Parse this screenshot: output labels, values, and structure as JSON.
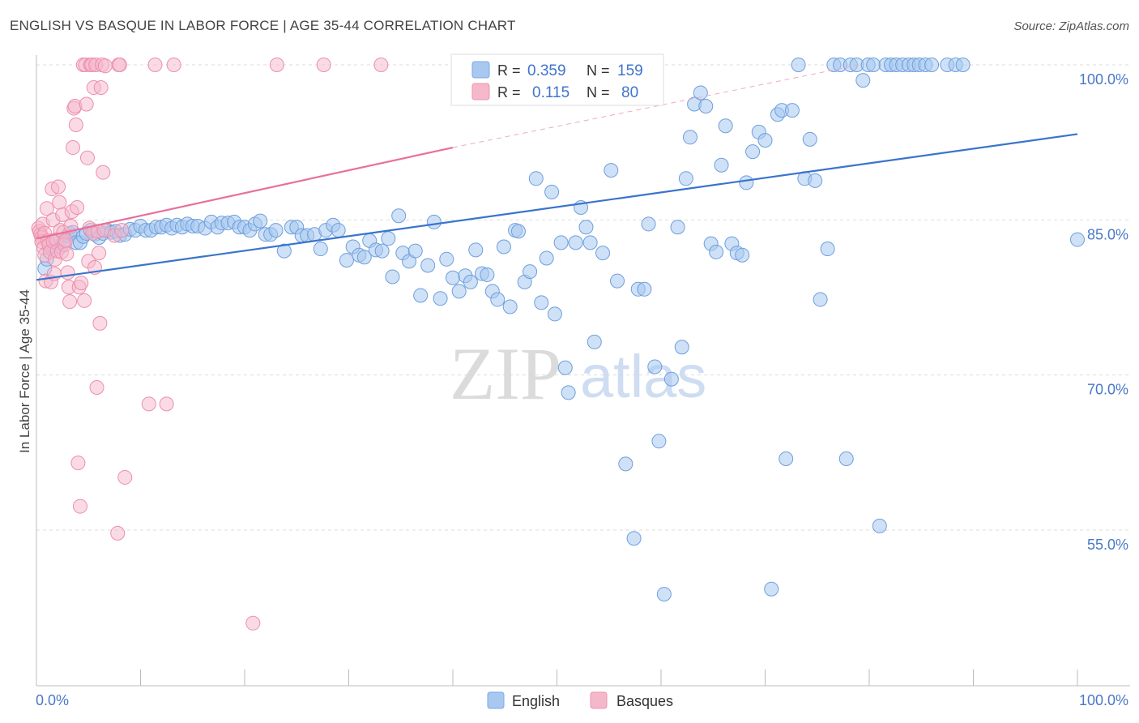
{
  "header": {
    "title": "ENGLISH VS BASQUE IN LABOR FORCE | AGE 35-44 CORRELATION CHART",
    "source": "Source: ZipAtlas.com"
  },
  "watermark": {
    "zip": "ZIP",
    "atlas": "atlas"
  },
  "legend_box": {
    "rows": [
      {
        "r_label": "R =",
        "r_value": "0.359",
        "n_label": "N =",
        "n_value": "159",
        "color": "#a8c8f0"
      },
      {
        "r_label": "R =",
        "r_value": "0.115",
        "n_label": "N =",
        "n_value": "80",
        "color": "#f5b8cb"
      }
    ]
  },
  "bottom_legend": [
    {
      "label": "English",
      "color": "#a8c8f0"
    },
    {
      "label": "Basques",
      "color": "#f5b8cb"
    }
  ],
  "chart_data": {
    "type": "scatter",
    "title": "ENGLISH VS BASQUE IN LABOR FORCE | AGE 35-44 CORRELATION CHART",
    "xlabel": "",
    "ylabel": "In Labor Force | Age 35-44",
    "xlim": [
      0,
      100
    ],
    "ylim": [
      40,
      102
    ],
    "x_tick_labels": [
      {
        "value": 0,
        "label": "0.0%"
      },
      {
        "value": 100,
        "label": "100.0%"
      }
    ],
    "y_tick_labels": [
      {
        "value": 100,
        "label": "100.0%"
      },
      {
        "value": 85,
        "label": "85.0%"
      },
      {
        "value": 70,
        "label": "70.0%"
      },
      {
        "value": 55,
        "label": "55.0%"
      }
    ],
    "grid": "horizontal dashed",
    "legend_position": "bottom-center",
    "colors": {
      "english": "#a8c8f0",
      "english_line": "#3a74cc",
      "basques": "#f5b8cb",
      "basques_line": "#e8709a"
    },
    "series": [
      {
        "name": "English",
        "trend": {
          "x": [
            0,
            100
          ],
          "y": [
            79.2,
            93.3
          ]
        },
        "points": [
          [
            0.8,
            80.3
          ],
          [
            1.0,
            81.2
          ],
          [
            1.3,
            82.3
          ],
          [
            1.6,
            82.1
          ],
          [
            2.0,
            83.0
          ],
          [
            2.3,
            82.4
          ],
          [
            2.6,
            82.9
          ],
          [
            3.0,
            83.5
          ],
          [
            3.2,
            83.7
          ],
          [
            3.5,
            83.8
          ],
          [
            3.8,
            82.8
          ],
          [
            4.2,
            82.8
          ],
          [
            4.5,
            83.4
          ],
          [
            4.8,
            83.7
          ],
          [
            5.2,
            84.0
          ],
          [
            5.6,
            83.6
          ],
          [
            6.0,
            83.3
          ],
          [
            6.4,
            83.7
          ],
          [
            6.8,
            84.0
          ],
          [
            7.2,
            83.8
          ],
          [
            7.6,
            83.9
          ],
          [
            8.0,
            83.5
          ],
          [
            8.5,
            83.6
          ],
          [
            9.0,
            84.1
          ],
          [
            9.5,
            84.0
          ],
          [
            10.0,
            84.4
          ],
          [
            10.5,
            84.0
          ],
          [
            11.0,
            84.0
          ],
          [
            11.5,
            84.3
          ],
          [
            12.0,
            84.3
          ],
          [
            12.5,
            84.5
          ],
          [
            13.0,
            84.2
          ],
          [
            13.5,
            84.5
          ],
          [
            14.0,
            84.3
          ],
          [
            14.5,
            84.6
          ],
          [
            15.0,
            84.4
          ],
          [
            15.5,
            84.4
          ],
          [
            16.2,
            84.2
          ],
          [
            16.8,
            84.8
          ],
          [
            17.4,
            84.3
          ],
          [
            17.8,
            84.7
          ],
          [
            18.4,
            84.7
          ],
          [
            19.0,
            84.8
          ],
          [
            19.5,
            84.3
          ],
          [
            20.0,
            84.3
          ],
          [
            20.5,
            84.0
          ],
          [
            21.0,
            84.6
          ],
          [
            21.5,
            84.9
          ],
          [
            22.0,
            83.6
          ],
          [
            22.5,
            83.6
          ],
          [
            23.0,
            84.0
          ],
          [
            23.8,
            82.0
          ],
          [
            24.5,
            84.3
          ],
          [
            25.0,
            84.3
          ],
          [
            25.5,
            83.5
          ],
          [
            26.0,
            83.5
          ],
          [
            26.7,
            83.6
          ],
          [
            27.3,
            82.2
          ],
          [
            27.8,
            84.0
          ],
          [
            28.5,
            84.5
          ],
          [
            29.0,
            84.0
          ],
          [
            29.8,
            81.1
          ],
          [
            30.4,
            82.4
          ],
          [
            31.0,
            81.6
          ],
          [
            31.5,
            81.4
          ],
          [
            32.0,
            83.0
          ],
          [
            32.6,
            82.1
          ],
          [
            33.2,
            82.0
          ],
          [
            33.8,
            83.2
          ],
          [
            34.2,
            79.5
          ],
          [
            34.8,
            85.4
          ],
          [
            35.2,
            81.8
          ],
          [
            35.8,
            81.0
          ],
          [
            36.4,
            82.0
          ],
          [
            36.9,
            77.7
          ],
          [
            37.6,
            80.6
          ],
          [
            38.2,
            84.8
          ],
          [
            38.8,
            77.4
          ],
          [
            39.4,
            81.2
          ],
          [
            40.0,
            79.4
          ],
          [
            40.6,
            78.1
          ],
          [
            41.2,
            79.6
          ],
          [
            41.7,
            79.0
          ],
          [
            42.2,
            82.1
          ],
          [
            42.8,
            79.8
          ],
          [
            43.3,
            79.7
          ],
          [
            43.8,
            78.1
          ],
          [
            44.3,
            77.3
          ],
          [
            44.9,
            82.4
          ],
          [
            45.5,
            76.6
          ],
          [
            46.0,
            84.0
          ],
          [
            46.3,
            83.9
          ],
          [
            46.9,
            79.0
          ],
          [
            47.4,
            80.0
          ],
          [
            48.0,
            89.0
          ],
          [
            48.5,
            77.0
          ],
          [
            49.0,
            81.3
          ],
          [
            49.5,
            87.7
          ],
          [
            49.8,
            75.9
          ],
          [
            50.4,
            82.8
          ],
          [
            50.8,
            70.7
          ],
          [
            51.1,
            68.3
          ],
          [
            51.8,
            82.8
          ],
          [
            52.3,
            86.2
          ],
          [
            52.8,
            84.3
          ],
          [
            53.2,
            82.8
          ],
          [
            53.6,
            73.2
          ],
          [
            54.4,
            81.8
          ],
          [
            55.2,
            89.8
          ],
          [
            55.8,
            79.1
          ],
          [
            56.6,
            61.4
          ],
          [
            57.4,
            54.2
          ],
          [
            57.8,
            78.3
          ],
          [
            58.4,
            78.3
          ],
          [
            58.8,
            84.6
          ],
          [
            59.4,
            70.8
          ],
          [
            59.8,
            63.6
          ],
          [
            60.3,
            48.8
          ],
          [
            61.0,
            69.6
          ],
          [
            61.6,
            84.3
          ],
          [
            62.0,
            72.7
          ],
          [
            62.4,
            89.0
          ],
          [
            62.8,
            93.0
          ],
          [
            63.2,
            96.2
          ],
          [
            63.8,
            97.3
          ],
          [
            64.3,
            96.0
          ],
          [
            64.8,
            82.7
          ],
          [
            65.3,
            81.9
          ],
          [
            65.8,
            90.3
          ],
          [
            66.2,
            94.1
          ],
          [
            66.8,
            82.7
          ],
          [
            67.3,
            81.8
          ],
          [
            67.8,
            81.6
          ],
          [
            68.2,
            88.6
          ],
          [
            68.8,
            91.6
          ],
          [
            69.4,
            93.5
          ],
          [
            70.0,
            92.7
          ],
          [
            70.6,
            49.3
          ],
          [
            71.2,
            95.2
          ],
          [
            71.6,
            95.6
          ],
          [
            72.0,
            61.9
          ],
          [
            72.6,
            95.6
          ],
          [
            73.2,
            100.0
          ],
          [
            73.8,
            89.0
          ],
          [
            74.3,
            92.8
          ],
          [
            74.8,
            88.8
          ],
          [
            75.3,
            77.3
          ],
          [
            76.0,
            82.2
          ],
          [
            76.6,
            100.0
          ],
          [
            77.2,
            100.0
          ],
          [
            77.8,
            61.9
          ],
          [
            78.2,
            100.0
          ],
          [
            78.8,
            100.0
          ],
          [
            79.4,
            98.5
          ],
          [
            79.9,
            100.0
          ],
          [
            80.4,
            100.0
          ],
          [
            81.0,
            55.4
          ],
          [
            81.6,
            100.0
          ],
          [
            82.1,
            100.0
          ],
          [
            82.6,
            100.0
          ],
          [
            83.2,
            100.0
          ],
          [
            83.8,
            100.0
          ],
          [
            84.3,
            100.0
          ],
          [
            84.8,
            100.0
          ],
          [
            85.4,
            100.0
          ],
          [
            86.0,
            100.0
          ],
          [
            87.5,
            100.0
          ],
          [
            88.3,
            100.0
          ],
          [
            89.0,
            100.0
          ],
          [
            100.0,
            83.1
          ]
        ]
      },
      {
        "name": "Basques",
        "trend": {
          "x": [
            0,
            40
          ],
          "y": [
            83.2,
            92.0
          ]
        },
        "trend_extension": {
          "x": [
            40,
            79
          ],
          "y": [
            92.0,
            100.0
          ]
        },
        "points": [
          [
            0.2,
            84.2
          ],
          [
            0.3,
            83.9
          ],
          [
            0.4,
            83.6
          ],
          [
            0.5,
            83.3
          ],
          [
            0.5,
            82.9
          ],
          [
            0.6,
            84.6
          ],
          [
            0.7,
            82.3
          ],
          [
            0.8,
            81.6
          ],
          [
            0.8,
            83.7
          ],
          [
            0.9,
            79.1
          ],
          [
            1.0,
            86.1
          ],
          [
            1.1,
            83.0
          ],
          [
            1.2,
            82.6
          ],
          [
            1.3,
            81.9
          ],
          [
            1.4,
            79.0
          ],
          [
            1.5,
            88.0
          ],
          [
            1.6,
            85.0
          ],
          [
            1.6,
            82.9
          ],
          [
            1.7,
            79.8
          ],
          [
            1.8,
            81.2
          ],
          [
            1.9,
            83.1
          ],
          [
            2.0,
            82.0
          ],
          [
            2.1,
            88.2
          ],
          [
            2.2,
            86.7
          ],
          [
            2.3,
            84.0
          ],
          [
            2.4,
            81.9
          ],
          [
            2.5,
            85.5
          ],
          [
            2.6,
            83.8
          ],
          [
            2.7,
            82.6
          ],
          [
            2.8,
            83.0
          ],
          [
            2.9,
            81.7
          ],
          [
            3.0,
            79.9
          ],
          [
            3.1,
            78.5
          ],
          [
            3.2,
            77.1
          ],
          [
            3.3,
            84.4
          ],
          [
            3.4,
            85.8
          ],
          [
            3.5,
            92.0
          ],
          [
            3.6,
            95.8
          ],
          [
            3.7,
            96.0
          ],
          [
            3.8,
            94.2
          ],
          [
            3.9,
            86.2
          ],
          [
            4.0,
            61.5
          ],
          [
            4.1,
            78.5
          ],
          [
            4.2,
            57.3
          ],
          [
            4.3,
            78.9
          ],
          [
            4.5,
            100.0
          ],
          [
            4.6,
            77.2
          ],
          [
            4.7,
            100.0
          ],
          [
            4.8,
            96.2
          ],
          [
            4.9,
            91.0
          ],
          [
            5.0,
            81.0
          ],
          [
            5.1,
            84.2
          ],
          [
            5.2,
            100.0
          ],
          [
            5.3,
            100.0
          ],
          [
            5.4,
            83.7
          ],
          [
            5.5,
            97.8
          ],
          [
            5.6,
            80.4
          ],
          [
            5.7,
            100.0
          ],
          [
            5.8,
            68.8
          ],
          [
            5.9,
            83.9
          ],
          [
            6.0,
            81.8
          ],
          [
            6.1,
            75.0
          ],
          [
            6.2,
            97.8
          ],
          [
            6.3,
            100.0
          ],
          [
            6.4,
            89.6
          ],
          [
            6.5,
            84.0
          ],
          [
            6.6,
            99.9
          ],
          [
            7.5,
            83.5
          ],
          [
            7.8,
            54.7
          ],
          [
            7.9,
            100.0
          ],
          [
            8.0,
            100.0
          ],
          [
            8.2,
            84.0
          ],
          [
            8.5,
            60.1
          ],
          [
            10.8,
            67.2
          ],
          [
            11.4,
            100.0
          ],
          [
            12.5,
            67.2
          ],
          [
            13.2,
            100.0
          ],
          [
            20.8,
            46.0
          ],
          [
            23.1,
            100.0
          ],
          [
            27.6,
            100.0
          ],
          [
            33.1,
            100.0
          ]
        ]
      }
    ]
  }
}
